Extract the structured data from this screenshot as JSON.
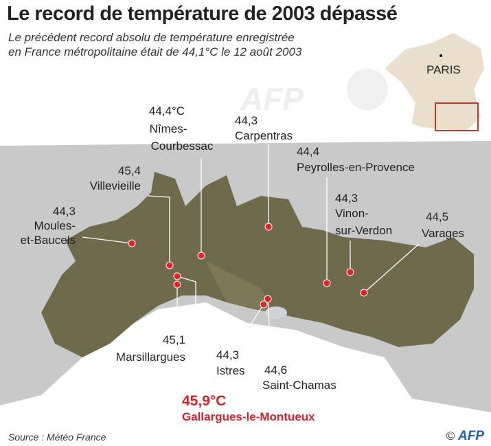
{
  "title": "Le record de température de 2003 dépassé",
  "subtitle": [
    "Le précédent record absolu de température enregistrée",
    "en France métropolitaine était de 44,1°C le 12 août 2003"
  ],
  "inset": {
    "city": "PARIS",
    "highlight_color": "#c0392b",
    "land_color": "#eadfcc"
  },
  "stations": [
    {
      "value": "44,3",
      "name": [
        "Moules-",
        "et-Baucels"
      ]
    },
    {
      "value": "45,4",
      "name": [
        "Villevieille"
      ]
    },
    {
      "value": "44,4°C",
      "name": [
        "Nîmes-",
        "Courbessac"
      ]
    },
    {
      "value": "44,3",
      "name": [
        "Carpentras"
      ]
    },
    {
      "value": "44,4",
      "name": [
        "Peyrolles-en-Provence"
      ]
    },
    {
      "value": "44,3",
      "name": [
        "Vinon-",
        "sur-Verdon"
      ]
    },
    {
      "value": "44,5",
      "name": [
        "Varages"
      ]
    },
    {
      "value": "45,1",
      "name": [
        "Marsillargues"
      ]
    },
    {
      "value": "44,3",
      "name": [
        "Istres"
      ]
    },
    {
      "value": "44,6",
      "name": [
        "Saint-Chamas"
      ]
    }
  ],
  "record": {
    "value": "45,9°C",
    "name": "Gallargues-le-Montueux",
    "color": "#d2232a"
  },
  "source": "Source : Météo France",
  "credit": {
    "symbol": "©",
    "agency": "AFP"
  }
}
